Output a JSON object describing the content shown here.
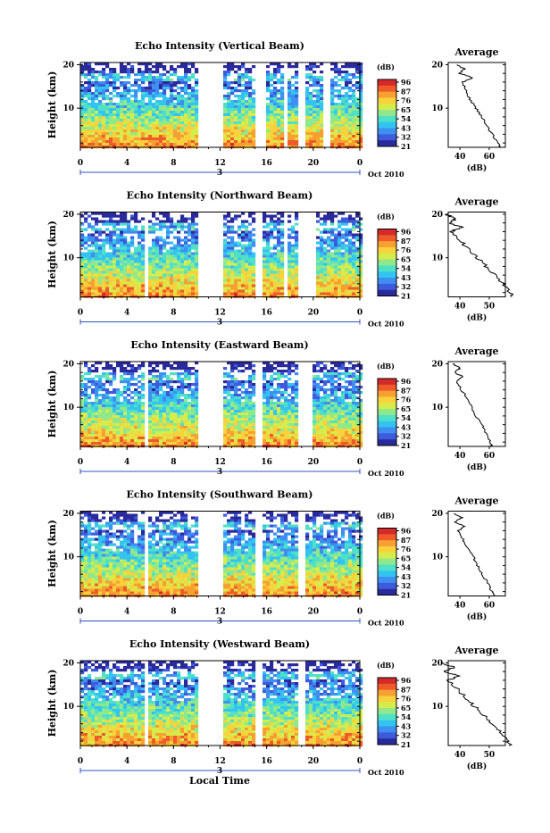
{
  "chart_data": [
    {
      "type": "heatmap",
      "title": "Echo Intensity (Vertical Beam)",
      "ylabel": "Height (km)",
      "xlabel": "",
      "x_ticks": [
        "0",
        "4",
        "8",
        "12",
        "16",
        "20",
        "0"
      ],
      "y_ticks": [
        "20",
        "10"
      ],
      "date_marker": "3",
      "date_label": "Oct 2010",
      "colorbar": {
        "unit": "(dB)",
        "labels": [
          "96",
          "87",
          "76",
          "65",
          "54",
          "43",
          "32",
          "21"
        ]
      },
      "data_gaps_hours": [
        [
          10,
          12.4
        ],
        [
          15,
          16
        ],
        [
          17.5,
          17.8
        ],
        [
          18.8,
          19.3
        ],
        [
          21,
          21.4
        ]
      ],
      "profile": {
        "title": "Average",
        "xlabel": "(dB)",
        "x_ticks": [
          "40",
          "60"
        ],
        "y_ticks": [
          "20",
          "10"
        ],
        "heights_km": [
          1,
          2,
          4,
          6,
          8,
          10,
          12,
          14,
          16,
          17,
          18,
          19,
          20
        ],
        "values_db": [
          68,
          66,
          62,
          58,
          55,
          51,
          47,
          44,
          42,
          49,
          40,
          43,
          38
        ]
      }
    },
    {
      "type": "heatmap",
      "title": "Echo Intensity (Northward Beam)",
      "ylabel": "Height (km)",
      "xlabel": "",
      "x_ticks": [
        "0",
        "4",
        "8",
        "12",
        "16",
        "20",
        "0"
      ],
      "y_ticks": [
        "20",
        "10"
      ],
      "date_marker": "3",
      "date_label": "Oct 2010",
      "colorbar": {
        "unit": "(dB)",
        "labels": [
          "96",
          "87",
          "76",
          "65",
          "54",
          "43",
          "32",
          "21"
        ]
      },
      "data_gaps_hours": [
        [
          5.5,
          5.8
        ],
        [
          10,
          12.4
        ],
        [
          15,
          15.6
        ],
        [
          17.5,
          17.8
        ],
        [
          18.8,
          20.2
        ]
      ],
      "profile": {
        "title": "Average",
        "xlabel": "(dB)",
        "x_ticks": [
          "40",
          "50"
        ],
        "y_ticks": [
          "20",
          "10"
        ],
        "heights_km": [
          1,
          2,
          4,
          6,
          8,
          10,
          12,
          14,
          16,
          17,
          18,
          19,
          20
        ],
        "values_db": [
          58,
          57,
          55,
          52,
          49,
          46,
          43,
          40,
          37,
          41,
          36,
          39,
          35
        ]
      }
    },
    {
      "type": "heatmap",
      "title": "Echo Intensity (Eastward Beam)",
      "ylabel": "Height (km)",
      "xlabel": "",
      "x_ticks": [
        "0",
        "4",
        "8",
        "12",
        "16",
        "20",
        "0"
      ],
      "y_ticks": [
        "20",
        "10"
      ],
      "date_marker": "3",
      "date_label": "Oct 2010",
      "colorbar": {
        "unit": "(dB)",
        "labels": [
          "96",
          "87",
          "76",
          "65",
          "54",
          "43",
          "32",
          "21"
        ]
      },
      "data_gaps_hours": [
        [
          5.5,
          5.8
        ],
        [
          10,
          12.4
        ],
        [
          15,
          15.6
        ],
        [
          18.6,
          19.8
        ]
      ],
      "profile": {
        "title": "Average",
        "xlabel": "(dB)",
        "x_ticks": [
          "40",
          "60"
        ],
        "y_ticks": [
          "20",
          "10"
        ],
        "heights_km": [
          1,
          2,
          4,
          6,
          8,
          10,
          12,
          14,
          16,
          17,
          18,
          19,
          20
        ],
        "values_db": [
          62,
          61,
          58,
          55,
          51,
          48,
          45,
          41,
          38,
          42,
          36,
          40,
          35
        ]
      }
    },
    {
      "type": "heatmap",
      "title": "Echo Intensity (Southward Beam)",
      "ylabel": "Height (km)",
      "xlabel": "",
      "x_ticks": [
        "0",
        "4",
        "8",
        "12",
        "16",
        "20",
        "0"
      ],
      "y_ticks": [
        "20",
        "10"
      ],
      "date_marker": "3",
      "date_label": "Oct 2010",
      "colorbar": {
        "unit": "(dB)",
        "labels": [
          "96",
          "87",
          "76",
          "65",
          "54",
          "43",
          "32",
          "21"
        ]
      },
      "data_gaps_hours": [
        [
          5.5,
          5.8
        ],
        [
          10,
          12.4
        ],
        [
          15,
          15.6
        ],
        [
          18.6,
          19.4
        ]
      ],
      "profile": {
        "title": "Average",
        "xlabel": "(dB)",
        "x_ticks": [
          "40",
          "60"
        ],
        "y_ticks": [
          "20",
          "10"
        ],
        "heights_km": [
          1,
          2,
          4,
          6,
          8,
          10,
          12,
          14,
          16,
          17,
          18,
          19,
          20
        ],
        "values_db": [
          64,
          62,
          59,
          55,
          52,
          49,
          45,
          42,
          39,
          43,
          37,
          41,
          36
        ]
      }
    },
    {
      "type": "heatmap",
      "title": "Echo Intensity (Westward Beam)",
      "ylabel": "Height (km)",
      "xlabel": "Local Time",
      "x_ticks": [
        "0",
        "4",
        "8",
        "12",
        "16",
        "20",
        "0"
      ],
      "y_ticks": [
        "20",
        "10"
      ],
      "date_marker": "3",
      "date_label": "Oct 2010",
      "colorbar": {
        "unit": "(dB)",
        "labels": [
          "96",
          "87",
          "76",
          "65",
          "54",
          "43",
          "32",
          "21"
        ]
      },
      "data_gaps_hours": [
        [
          5.5,
          5.8
        ],
        [
          10,
          12.4
        ],
        [
          15,
          15.6
        ],
        [
          18.6,
          19.4
        ]
      ],
      "profile": {
        "title": "Average",
        "xlabel": "(dB)",
        "x_ticks": [
          "40",
          "50"
        ],
        "y_ticks": [
          "20",
          "10"
        ],
        "heights_km": [
          1,
          2,
          4,
          6,
          8,
          10,
          12,
          14,
          16,
          17,
          18,
          19,
          20
        ],
        "values_db": [
          57,
          56,
          54,
          51,
          48,
          45,
          42,
          39,
          36,
          40,
          35,
          38,
          34
        ]
      }
    }
  ],
  "colormap": [
    "#2a2a9c",
    "#3d5bdc",
    "#3f8ff0",
    "#33c3f0",
    "#4fe0c8",
    "#8fe88c",
    "#d6ec4c",
    "#f7d23c",
    "#f7a032",
    "#ee5a2a",
    "#d42a2a"
  ]
}
